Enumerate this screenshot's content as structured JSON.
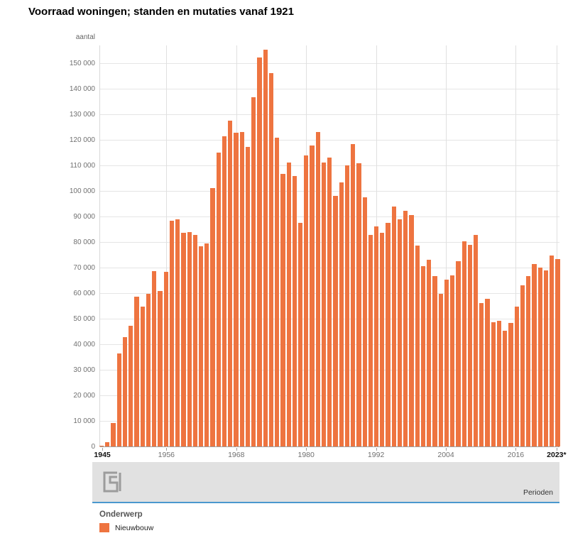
{
  "chart": {
    "title": "Voorraad woningen; standen en mutaties vanaf 1921",
    "y_unit": "aantal",
    "x_axis_title": "Perioden",
    "y_tick_labels": [
      "0",
      "10 000",
      "20 000",
      "30 000",
      "40 000",
      "50 000",
      "60 000",
      "70 000",
      "80 000",
      "90 000",
      "100 000",
      "110 000",
      "120 000",
      "130 000",
      "140 000",
      "150 000"
    ],
    "x_ticks": [
      {
        "year": 1945,
        "label": "1945",
        "bold": true
      },
      {
        "year": 1956,
        "label": "1956",
        "bold": false
      },
      {
        "year": 1968,
        "label": "1968",
        "bold": false
      },
      {
        "year": 1980,
        "label": "1980",
        "bold": false
      },
      {
        "year": 1992,
        "label": "1992",
        "bold": false
      },
      {
        "year": 2004,
        "label": "2004",
        "bold": false
      },
      {
        "year": 2016,
        "label": "2016",
        "bold": false
      },
      {
        "year": 2023,
        "label": "2023*",
        "bold": true
      }
    ]
  },
  "chart_data": {
    "type": "bar",
    "title": "Voorraad woningen; standen en mutaties vanaf 1921",
    "series_name": "Nieuwbouw",
    "xlabel": "Perioden",
    "ylabel": "aantal",
    "ylim": [
      0,
      157000
    ],
    "y_step": 10000,
    "grid": true,
    "legend_position": "bottom",
    "categories": [
      1945,
      1946,
      1947,
      1948,
      1949,
      1950,
      1951,
      1952,
      1953,
      1954,
      1955,
      1956,
      1957,
      1958,
      1959,
      1960,
      1961,
      1962,
      1963,
      1964,
      1965,
      1966,
      1967,
      1968,
      1969,
      1970,
      1971,
      1972,
      1973,
      1974,
      1975,
      1976,
      1977,
      1978,
      1979,
      1980,
      1981,
      1982,
      1983,
      1984,
      1985,
      1986,
      1987,
      1988,
      1989,
      1990,
      1991,
      1992,
      1993,
      1994,
      1995,
      1996,
      1997,
      1998,
      1999,
      2000,
      2001,
      2002,
      2003,
      2004,
      2005,
      2006,
      2007,
      2008,
      2009,
      2010,
      2011,
      2012,
      2013,
      2014,
      2015,
      2016,
      2017,
      2018,
      2019,
      2020,
      2021,
      2022,
      2023
    ],
    "values": [
      400,
      1600,
      9200,
      36400,
      42800,
      47300,
      58700,
      54600,
      59600,
      68500,
      60800,
      68300,
      88400,
      89000,
      83600,
      83800,
      82700,
      78400,
      79500,
      101000,
      115000,
      121500,
      127400,
      122800,
      123100,
      117300,
      136600,
      152200,
      155400,
      146200,
      120800,
      106800,
      111100,
      105800,
      87500,
      113800,
      117800,
      123200,
      111100,
      113000,
      98100,
      103300,
      110100,
      118400,
      110900,
      97400,
      82900,
      86200,
      83700,
      87400,
      93800,
      88900,
      92300,
      90500,
      78600,
      70700,
      73000,
      66700,
      59600,
      65300,
      67000,
      72400,
      80200,
      78900,
      82900,
      56000,
      57700,
      48700,
      49300,
      45200,
      48400,
      54800,
      63000,
      66600,
      71500,
      70000,
      69000,
      74600,
      73300
    ]
  },
  "legend": {
    "title": "Onderwerp",
    "items": [
      {
        "label": "Nieuwbouw",
        "color": "#ee7440"
      }
    ]
  },
  "colors": {
    "bar": "#ee7440",
    "grid": "#e5e5e5",
    "axis": "#9e9e9e",
    "footer_bg": "#e1e1e1",
    "footer_line": "#4a98ce",
    "tick_text": "#707070",
    "bold_text": "#111111"
  }
}
